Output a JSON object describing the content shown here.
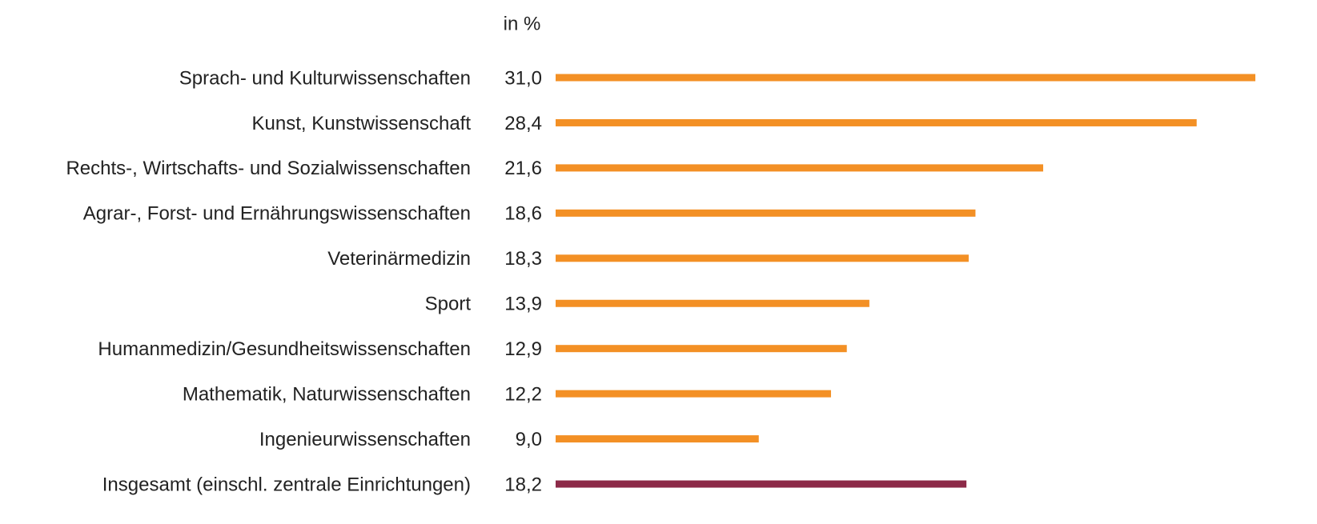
{
  "chart_data": {
    "type": "hbar",
    "value_axis_label": "in %",
    "categories": [
      "Sprach- und Kulturwissenschaften",
      "Kunst, Kunstwissenschaft",
      "Rechts-, Wirtschafts- und Sozialwissenschaften",
      "Agrar-, Forst- und Ernährungswissenschaften",
      "Veterinärmedizin",
      "Sport",
      "Humanmedizin/Gesundheitswissenschaften",
      "Mathematik, Naturwissenschaften",
      "Ingenieurwissenschaften",
      "Insgesamt (einschl. zentrale Einrichtungen)"
    ],
    "values": [
      31.0,
      28.4,
      21.6,
      18.6,
      18.3,
      13.9,
      12.9,
      12.2,
      9.0,
      18.2
    ],
    "value_labels": [
      "31,0",
      "28,4",
      "21,6",
      "18,6",
      "18,3",
      "13,9",
      "12,9",
      "12,2",
      "9,0",
      "18,2"
    ],
    "colors": [
      "#f39025",
      "#f39025",
      "#f39025",
      "#f39025",
      "#f39025",
      "#f39025",
      "#f39025",
      "#f39025",
      "#f39025",
      "#8c2a48"
    ]
  }
}
